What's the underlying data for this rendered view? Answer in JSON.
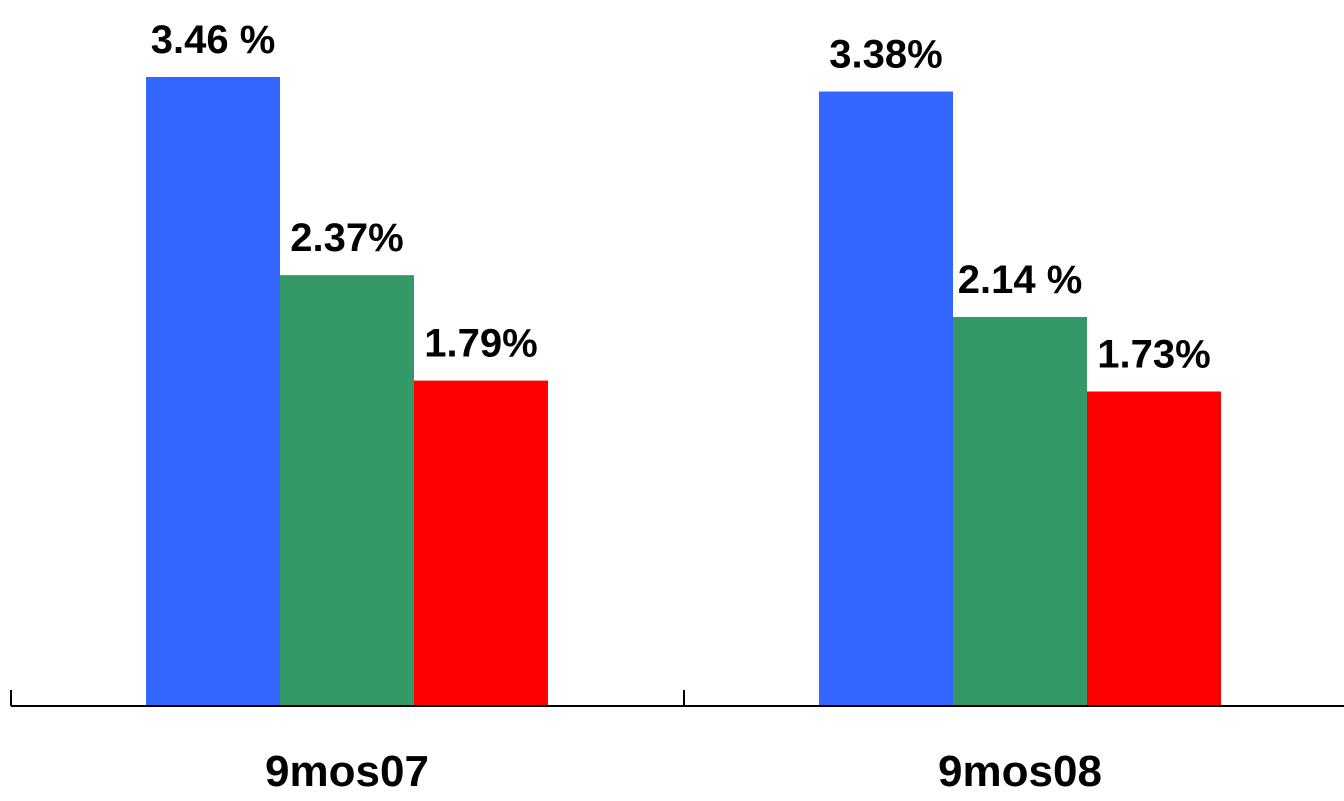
{
  "chart_data": {
    "type": "bar",
    "categories": [
      "9mos07",
      "9mos08"
    ],
    "series": [
      {
        "color": "#3366FF",
        "values": [
          3.46,
          3.38
        ],
        "labels": [
          "3.46 %",
          "3.38%"
        ]
      },
      {
        "color": "#339966",
        "values": [
          2.37,
          2.14
        ],
        "labels": [
          "2.37%",
          "2.14 %"
        ]
      },
      {
        "color": "#FF0000",
        "values": [
          1.79,
          1.73
        ],
        "labels": [
          "1.79%",
          "1.73%"
        ]
      }
    ],
    "title": "",
    "xlabel": "",
    "ylabel": "",
    "ylim": [
      0,
      3.46
    ],
    "grid": false,
    "legend": "none"
  }
}
